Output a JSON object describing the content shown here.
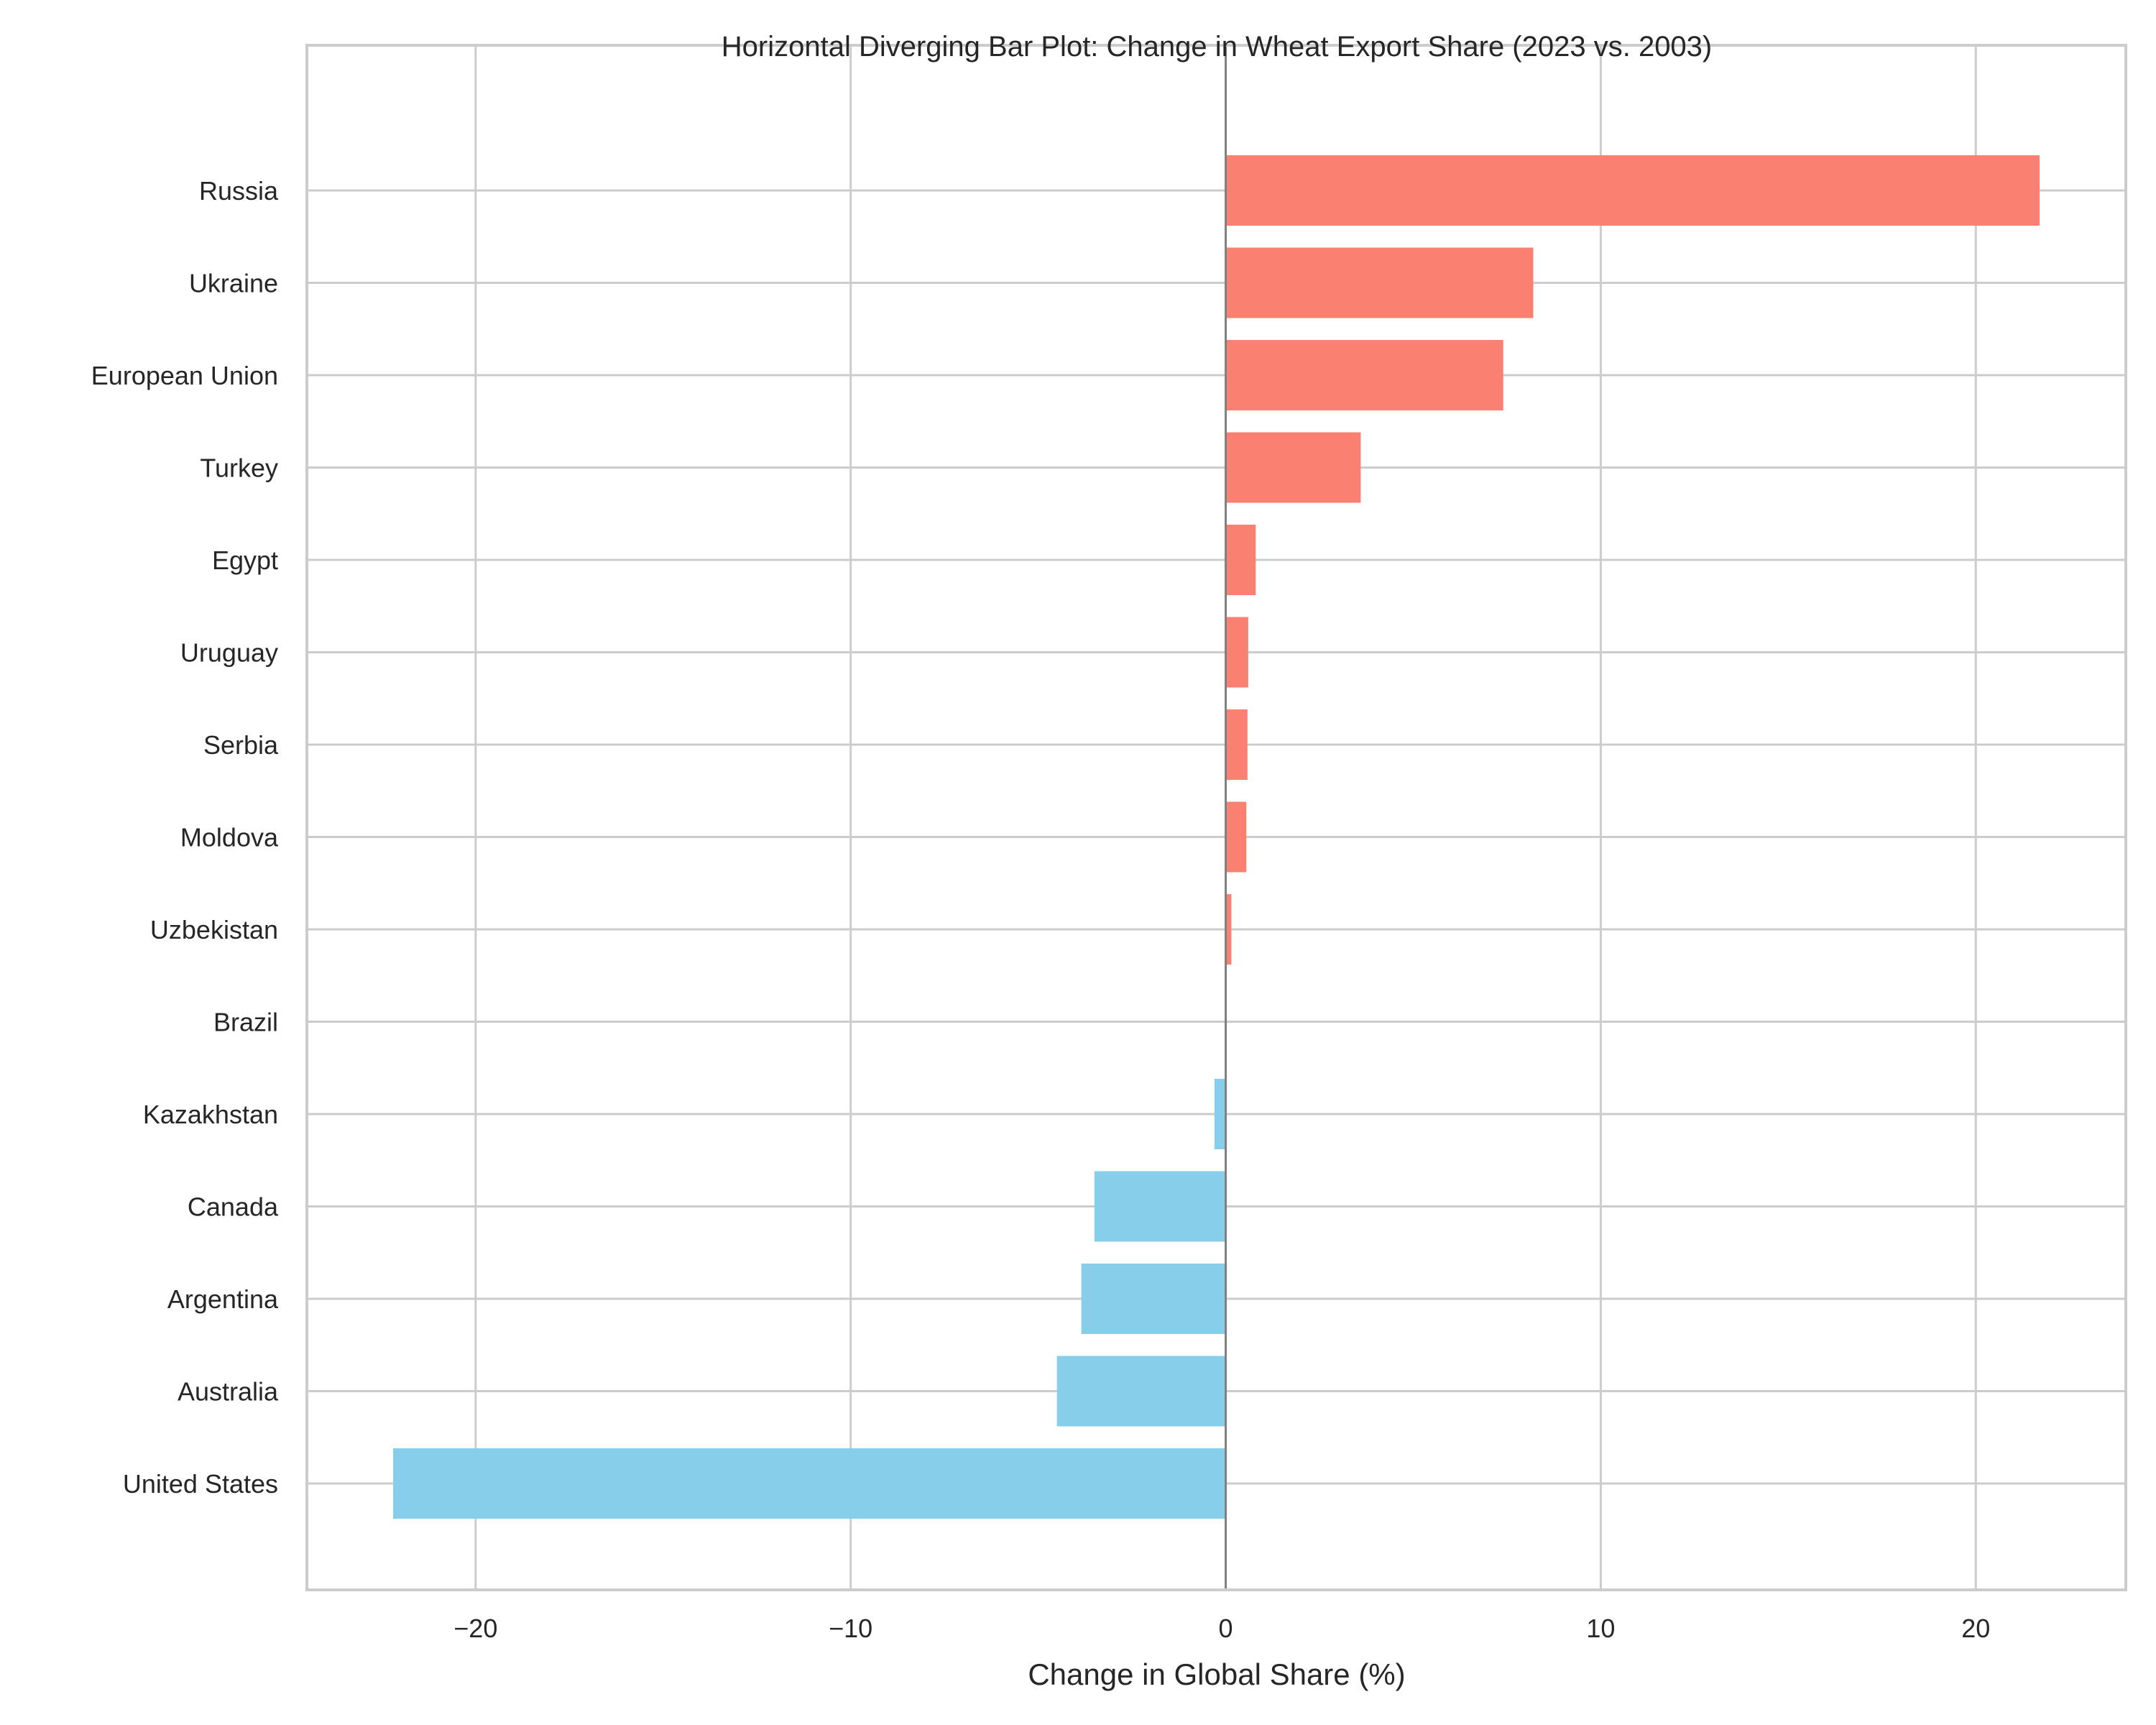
{
  "chart_data": {
    "type": "bar",
    "orientation": "horizontal",
    "title": "Horizontal Diverging Bar Plot: Change in Wheat Export Share (2023 vs. 2003)",
    "xlabel": "Change in Global Share (%)",
    "ylabel": "",
    "xlim": [
      -24.5,
      24
    ],
    "xticks": [
      -20,
      -10,
      0,
      10,
      20
    ],
    "xtick_labels": [
      "−20",
      "−10",
      "0",
      "10",
      "20"
    ],
    "grid": true,
    "zero_line": true,
    "colors": {
      "positive": "#FA8072",
      "negative": "#87CEEB",
      "grid": "#CCCCCC",
      "zero_line": "#808080",
      "text": "#262626"
    },
    "categories": [
      "Russia",
      "Ukraine",
      "European Union",
      "Turkey",
      "Egypt",
      "Uruguay",
      "Serbia",
      "Moldova",
      "Uzbekistan",
      "Brazil",
      "Kazakhstan",
      "Canada",
      "Argentina",
      "Australia",
      "United States"
    ],
    "values": [
      21.7,
      8.2,
      7.4,
      3.6,
      0.8,
      0.6,
      0.58,
      0.55,
      0.15,
      0.0,
      -0.3,
      -3.5,
      -3.85,
      -4.5,
      -22.2
    ]
  }
}
